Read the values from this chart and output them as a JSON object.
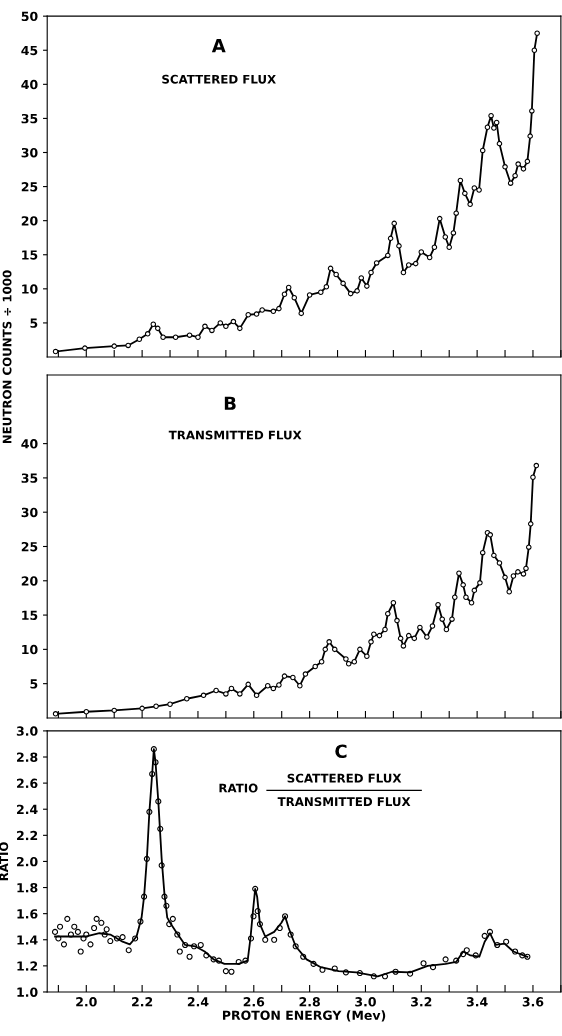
{
  "chart_data": [
    {
      "type": "line",
      "annotations": [
        "A",
        "SCATTERED FLUX"
      ],
      "ylabel": "NEUTRON COUNTS ÷ 1000",
      "marker": "circle",
      "tick_labels": "y",
      "xlim": [
        1.86,
        3.7
      ],
      "xticks": [
        1.9,
        2.0,
        2.1,
        2.2,
        2.3,
        2.4,
        2.5,
        2.6,
        2.7,
        2.8,
        2.9,
        3.0,
        3.1,
        3.2,
        3.3,
        3.4,
        3.5,
        3.6,
        3.7
      ],
      "ylim": [
        0,
        50
      ],
      "yticks": [
        5,
        10,
        15,
        20,
        25,
        30,
        35,
        40,
        45,
        50
      ],
      "series": [
        {
          "color": "#000000",
          "x": [
            1.89,
            1.995,
            2.1,
            2.15,
            2.19,
            2.22,
            2.24,
            2.256,
            2.275,
            2.32,
            2.37,
            2.4,
            2.425,
            2.45,
            2.48,
            2.5,
            2.527,
            2.55,
            2.58,
            2.61,
            2.63,
            2.67,
            2.69,
            2.71,
            2.725,
            2.745,
            2.77,
            2.8,
            2.84,
            2.86,
            2.875,
            2.895,
            2.92,
            2.947,
            2.97,
            2.985,
            3.005,
            3.02,
            3.04,
            3.08,
            3.09,
            3.103,
            3.12,
            3.136,
            3.155,
            3.18,
            3.2,
            3.23,
            3.247,
            3.266,
            3.286,
            3.3,
            3.315,
            3.325,
            3.34,
            3.356,
            3.375,
            3.39,
            3.407,
            3.42,
            3.437,
            3.45,
            3.46,
            3.47,
            3.48,
            3.5,
            3.52,
            3.536,
            3.547,
            3.566,
            3.58,
            3.59,
            3.596,
            3.605,
            3.615
          ],
          "values": [
            0.8,
            1.3,
            1.6,
            1.7,
            2.6,
            3.4,
            4.8,
            4.2,
            2.9,
            2.9,
            3.2,
            2.9,
            4.5,
            3.9,
            5.0,
            4.5,
            5.2,
            4.2,
            6.2,
            6.3,
            6.9,
            6.7,
            7.1,
            9.2,
            10.2,
            8.7,
            6.4,
            9.1,
            9.5,
            10.3,
            13.0,
            12.1,
            10.8,
            9.3,
            9.7,
            11.6,
            10.4,
            12.4,
            13.8,
            14.9,
            17.4,
            19.6,
            16.3,
            12.4,
            13.5,
            13.7,
            15.4,
            14.6,
            16.1,
            20.3,
            17.6,
            16.1,
            18.2,
            21.1,
            25.9,
            24.0,
            22.4,
            24.8,
            24.5,
            30.3,
            33.7,
            35.4,
            33.6,
            34.4,
            31.3,
            27.9,
            25.5,
            26.6,
            28.3,
            27.6,
            28.7,
            32.4,
            36.1,
            45.0,
            47.5
          ]
        }
      ]
    },
    {
      "type": "line",
      "annotations": [
        "B",
        "TRANSMITTED FLUX"
      ],
      "marker": "circle",
      "tick_labels": "y",
      "xlim": [
        1.86,
        3.7
      ],
      "xticks": [
        1.9,
        2.0,
        2.1,
        2.2,
        2.3,
        2.4,
        2.5,
        2.6,
        2.7,
        2.8,
        2.9,
        3.0,
        3.1,
        3.2,
        3.3,
        3.4,
        3.5,
        3.6,
        3.7
      ],
      "ylim": [
        0,
        50
      ],
      "yticks": [
        5,
        10,
        15,
        20,
        25,
        30,
        35,
        40
      ],
      "series": [
        {
          "color": "#000000",
          "x": [
            1.89,
            2.0,
            2.1,
            2.2,
            2.25,
            2.3,
            2.36,
            2.42,
            2.465,
            2.5,
            2.52,
            2.55,
            2.58,
            2.61,
            2.65,
            2.67,
            2.69,
            2.71,
            2.74,
            2.765,
            2.785,
            2.82,
            2.843,
            2.856,
            2.87,
            2.89,
            2.93,
            2.94,
            2.96,
            2.98,
            3.005,
            3.02,
            3.03,
            3.05,
            3.07,
            3.08,
            3.1,
            3.113,
            3.126,
            3.136,
            3.155,
            3.175,
            3.195,
            3.22,
            3.24,
            3.26,
            3.275,
            3.29,
            3.31,
            3.32,
            3.335,
            3.35,
            3.36,
            3.38,
            3.39,
            3.41,
            3.42,
            3.437,
            3.447,
            3.46,
            3.48,
            3.5,
            3.515,
            3.53,
            3.546,
            3.566,
            3.575,
            3.585,
            3.592,
            3.6,
            3.612
          ],
          "values": [
            0.6,
            0.9,
            1.1,
            1.4,
            1.7,
            2.0,
            2.8,
            3.3,
            4.0,
            3.5,
            4.3,
            3.5,
            4.9,
            3.3,
            4.7,
            4.3,
            4.8,
            6.1,
            5.9,
            4.7,
            6.4,
            7.5,
            8.2,
            10.0,
            11.1,
            10.0,
            8.6,
            7.9,
            8.2,
            10.0,
            9.0,
            11.1,
            12.2,
            12.0,
            12.9,
            15.2,
            16.8,
            14.2,
            11.6,
            10.5,
            12.0,
            11.6,
            13.2,
            11.8,
            13.4,
            16.5,
            14.4,
            12.9,
            14.4,
            17.6,
            21.1,
            19.4,
            17.6,
            16.8,
            18.6,
            19.7,
            24.1,
            27.0,
            26.7,
            23.7,
            22.6,
            20.5,
            18.4,
            20.7,
            21.3,
            21.0,
            21.8,
            24.9,
            28.3,
            35.1,
            36.8
          ]
        }
      ]
    },
    {
      "type": "scatter",
      "annotations": [
        "C",
        "RATIO",
        "SCATTERED FLUX",
        "TRANSMITTED FLUX"
      ],
      "xlabel": "PROTON ENERGY (Mev)",
      "ylabel": "RATIO",
      "xlim": [
        1.86,
        3.7
      ],
      "xticks": [
        {
          "value": 1.9,
          "label": null
        },
        {
          "value": 2.0,
          "label": "2.0"
        },
        {
          "value": 2.1,
          "label": null
        },
        2.2,
        {
          "value": 2.3,
          "label": null
        },
        2.4,
        {
          "value": 2.5,
          "label": null
        },
        2.6,
        {
          "value": 2.7,
          "label": null
        },
        2.8,
        {
          "value": 2.9,
          "label": null
        },
        {
          "value": 3.0,
          "label": "3.0"
        },
        {
          "value": 3.1,
          "label": null
        },
        3.2,
        {
          "value": 3.3,
          "label": null
        },
        3.4,
        {
          "value": 3.5,
          "label": null
        },
        3.6,
        {
          "value": 3.7,
          "label": null
        }
      ],
      "ylim": [
        1.0,
        3.0
      ],
      "yticks": [
        {
          "value": 1.0,
          "label": "1.0"
        },
        1.2,
        1.4,
        1.6,
        1.8,
        {
          "value": 2.0,
          "label": "2.0"
        },
        2.2,
        2.4,
        2.6,
        2.8,
        {
          "value": 3.0,
          "label": "3.0"
        }
      ],
      "series": [
        {
          "type": "scatter",
          "marker": "circle",
          "color": "#000000",
          "x": [
            1.888,
            1.9,
            1.906,
            1.92,
            1.932,
            1.945,
            1.957,
            1.97,
            1.98,
            1.99,
            2.0,
            2.015,
            2.028,
            2.037,
            2.054,
            2.066,
            2.073,
            2.086,
            2.11,
            2.13,
            2.152,
            2.175,
            2.194,
            2.207,
            2.217,
            2.226,
            2.236,
            2.242,
            2.248,
            2.258,
            2.265,
            2.27,
            2.28,
            2.287,
            2.297,
            2.31,
            2.326,
            2.335,
            2.354,
            2.37,
            2.386,
            2.41,
            2.43,
            2.456,
            2.475,
            2.5,
            2.52,
            2.546,
            2.57,
            2.59,
            2.599,
            2.605,
            2.614,
            2.622,
            2.641,
            2.673,
            2.693,
            2.712,
            2.732,
            2.75,
            2.777,
            2.814,
            2.846,
            2.89,
            2.93,
            2.98,
            3.03,
            3.07,
            3.108,
            3.16,
            3.208,
            3.242,
            3.287,
            3.325,
            3.35,
            3.363,
            3.395,
            3.427,
            3.446,
            3.472,
            3.504,
            3.536,
            3.562,
            3.58
          ],
          "values": [
            1.46,
            1.41,
            1.5,
            1.365,
            1.56,
            1.44,
            1.5,
            1.46,
            1.31,
            1.41,
            1.44,
            1.365,
            1.49,
            1.56,
            1.53,
            1.44,
            1.48,
            1.39,
            1.41,
            1.42,
            1.32,
            1.41,
            1.54,
            1.73,
            2.02,
            2.38,
            2.67,
            2.86,
            2.76,
            2.46,
            2.25,
            1.97,
            1.73,
            1.66,
            1.52,
            1.56,
            1.44,
            1.31,
            1.36,
            1.27,
            1.35,
            1.36,
            1.28,
            1.25,
            1.24,
            1.16,
            1.155,
            1.23,
            1.24,
            1.41,
            1.58,
            1.79,
            1.62,
            1.52,
            1.4,
            1.4,
            1.49,
            1.58,
            1.44,
            1.35,
            1.27,
            1.215,
            1.17,
            1.18,
            1.15,
            1.145,
            1.12,
            1.12,
            1.155,
            1.14,
            1.22,
            1.19,
            1.25,
            1.24,
            1.29,
            1.32,
            1.28,
            1.43,
            1.46,
            1.36,
            1.385,
            1.31,
            1.28,
            1.27
          ]
        },
        {
          "type": "line",
          "marker": "none",
          "color": "#000000",
          "x": [
            1.888,
            2.0,
            2.047,
            2.086,
            2.13,
            2.156,
            2.18,
            2.198,
            2.207,
            2.217,
            2.226,
            2.236,
            2.242,
            2.248,
            2.258,
            2.27,
            2.28,
            2.29,
            2.303,
            2.322,
            2.354,
            2.39,
            2.424,
            2.456,
            2.495,
            2.546,
            2.578,
            2.588,
            2.597,
            2.605,
            2.612,
            2.622,
            2.641,
            2.673,
            2.699,
            2.712,
            2.725,
            2.75,
            2.789,
            2.84,
            2.904,
            2.967,
            3.044,
            3.095,
            3.16,
            3.223,
            3.287,
            3.325,
            3.35,
            3.376,
            3.408,
            3.427,
            3.446,
            3.466,
            3.498,
            3.53,
            3.58
          ],
          "values": [
            1.425,
            1.425,
            1.45,
            1.44,
            1.385,
            1.365,
            1.425,
            1.57,
            1.73,
            2.02,
            2.38,
            2.67,
            2.86,
            2.76,
            2.46,
            2.02,
            1.75,
            1.57,
            1.52,
            1.46,
            1.36,
            1.35,
            1.31,
            1.25,
            1.215,
            1.215,
            1.24,
            1.41,
            1.62,
            1.79,
            1.73,
            1.52,
            1.425,
            1.46,
            1.53,
            1.58,
            1.49,
            1.35,
            1.25,
            1.19,
            1.16,
            1.15,
            1.12,
            1.155,
            1.15,
            1.2,
            1.215,
            1.23,
            1.31,
            1.28,
            1.27,
            1.385,
            1.45,
            1.36,
            1.37,
            1.31,
            1.27
          ]
        }
      ]
    }
  ]
}
